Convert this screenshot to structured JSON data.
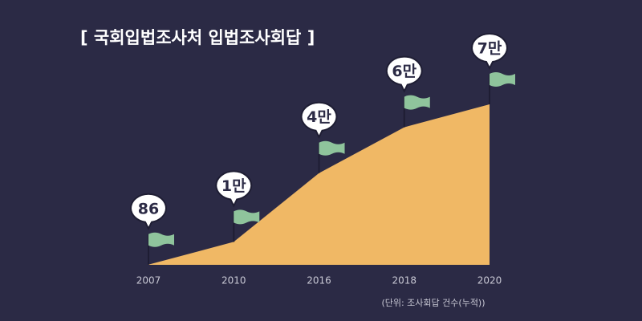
{
  "chart_data": {
    "type": "area",
    "title": "[ 국회입법조사처  입법조사회답 ]",
    "categories": [
      "2007",
      "2010",
      "2016",
      "2018",
      "2020"
    ],
    "values": [
      86,
      10000,
      40000,
      60000,
      70000
    ],
    "value_labels": [
      "86",
      "1만",
      "4만",
      "6만",
      "7만"
    ],
    "color": "#f0b865",
    "note": "(단위: 조사회답 건수(누적))"
  }
}
